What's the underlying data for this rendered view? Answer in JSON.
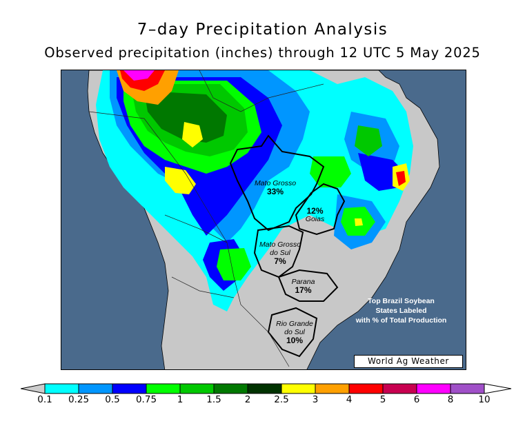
{
  "title": "7–day Precipitation Analysis",
  "subtitle": "Observed precipitation (inches) through 12 UTC 5 May 2025",
  "states": [
    {
      "name": "Mato Grosso",
      "pct": "33%"
    },
    {
      "name": "Goias",
      "pct": "12%"
    },
    {
      "name": "Mato Grosso do Sul",
      "name_line1": "Mato Grosso",
      "name_line2": "do Sul",
      "pct": "7%"
    },
    {
      "name": "Parana",
      "pct": "17%"
    },
    {
      "name": "Rio Grande do Sul",
      "name_line1": "Rio Grande",
      "name_line2": "do Sul",
      "pct": "10%"
    }
  ],
  "note": {
    "line1": "Top Brazil Soybean",
    "line2": "States Labeled",
    "line3": "with % of Total Production"
  },
  "credit": "World Ag Weather",
  "legend": {
    "ticks": [
      "0.1",
      "0.25",
      "0.5",
      "0.75",
      "1",
      "1.5",
      "2",
      "2.5",
      "3",
      "4",
      "5",
      "6",
      "8",
      "10"
    ],
    "colors": [
      "#cccccc",
      "#00ffff",
      "#0096ff",
      "#0000ff",
      "#00ff00",
      "#00c800",
      "#007800",
      "#003200",
      "#ffff00",
      "#ffa000",
      "#ff0000",
      "#c80050",
      "#ff00ff",
      "#a050c8",
      "#ffffff"
    ]
  },
  "map_colors": {
    "ocean": "#4a6a8c",
    "land_dry": "#c8c8c8"
  }
}
